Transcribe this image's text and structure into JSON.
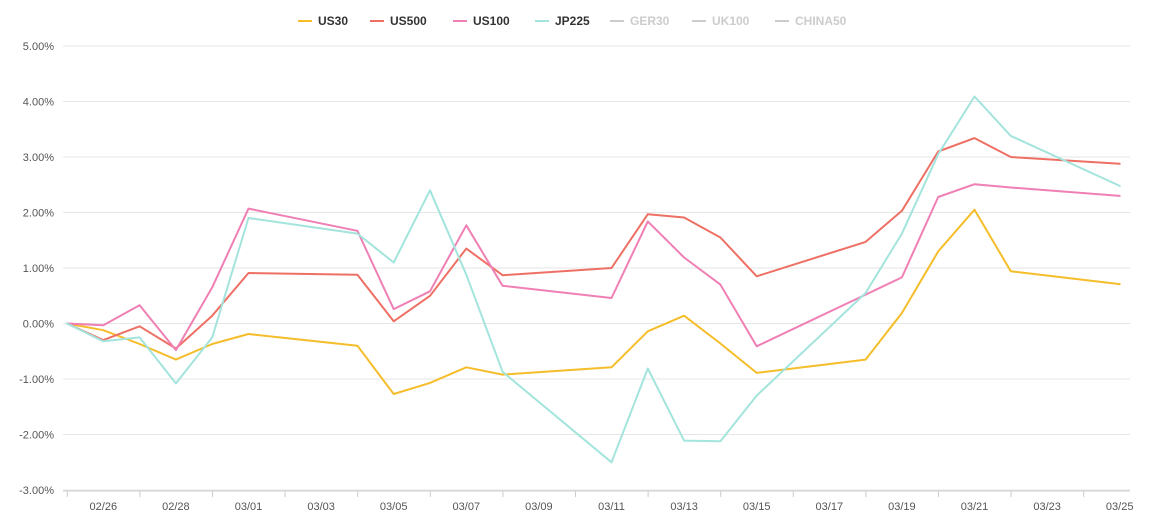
{
  "chart_data": {
    "type": "line",
    "title": "",
    "xlabel": "",
    "ylabel": "",
    "x_dates": [
      "02/25",
      "02/26",
      "02/27",
      "02/28",
      "02/29",
      "03/01",
      "03/04",
      "03/05",
      "03/06",
      "03/07",
      "03/08",
      "03/11",
      "03/12",
      "03/13",
      "03/14",
      "03/15",
      "03/18",
      "03/19",
      "03/20",
      "03/21",
      "03/22",
      "03/25"
    ],
    "x_ticks": [
      "02/26",
      "02/28",
      "03/01",
      "03/03",
      "03/05",
      "03/07",
      "03/09",
      "03/11",
      "03/13",
      "03/15",
      "03/17",
      "03/19",
      "03/21",
      "03/23",
      "03/25"
    ],
    "ylim": [
      -3,
      5
    ],
    "y_ticks": [
      "-3.00%",
      "-2.00%",
      "-1.00%",
      "0.00%",
      "1.00%",
      "2.00%",
      "3.00%",
      "4.00%",
      "5.00%"
    ],
    "legend_position": "top-center",
    "grid": true,
    "series": [
      {
        "name": "US30",
        "color": "#f5bd2a",
        "visible": true,
        "values": [
          0,
          -0.12,
          -0.37,
          -0.65,
          -0.37,
          -0.19,
          -0.4,
          -1.27,
          -1.07,
          -0.79,
          -0.92,
          -0.79,
          -0.14,
          0.14,
          -0.36,
          -0.89,
          -0.65,
          0.19,
          1.3,
          2.05,
          0.94,
          0.71
        ]
      },
      {
        "name": "US500",
        "color": "#ee7064",
        "visible": true,
        "values": [
          0,
          -0.3,
          -0.05,
          -0.45,
          0.14,
          0.91,
          0.88,
          0.04,
          0.5,
          1.35,
          0.87,
          1.0,
          1.97,
          1.91,
          1.55,
          0.85,
          1.47,
          2.03,
          3.1,
          3.34,
          3.0,
          2.88
        ]
      },
      {
        "name": "US100",
        "color": "#ef7fb4",
        "visible": true,
        "values": [
          0,
          -0.03,
          0.33,
          -0.48,
          0.65,
          2.07,
          1.67,
          0.26,
          0.58,
          1.77,
          0.68,
          0.46,
          1.84,
          1.19,
          0.7,
          -0.41,
          0.52,
          0.83,
          2.28,
          2.51,
          2.45,
          2.3
        ]
      },
      {
        "name": "JP225",
        "color": "#a3e4dc",
        "visible": true,
        "values": [
          0,
          -0.32,
          -0.25,
          -1.08,
          -0.25,
          1.9,
          1.62,
          1.1,
          2.4,
          0.88,
          -0.87,
          -2.5,
          -0.81,
          -2.11,
          -2.12,
          -1.3,
          0.55,
          1.62,
          3.05,
          4.09,
          3.38,
          2.48
        ]
      },
      {
        "name": "GER30",
        "color": "#cccccc",
        "visible": false,
        "values": []
      },
      {
        "name": "UK100",
        "color": "#cccccc",
        "visible": false,
        "values": []
      },
      {
        "name": "CHINA50",
        "color": "#cccccc",
        "visible": false,
        "values": []
      }
    ]
  }
}
